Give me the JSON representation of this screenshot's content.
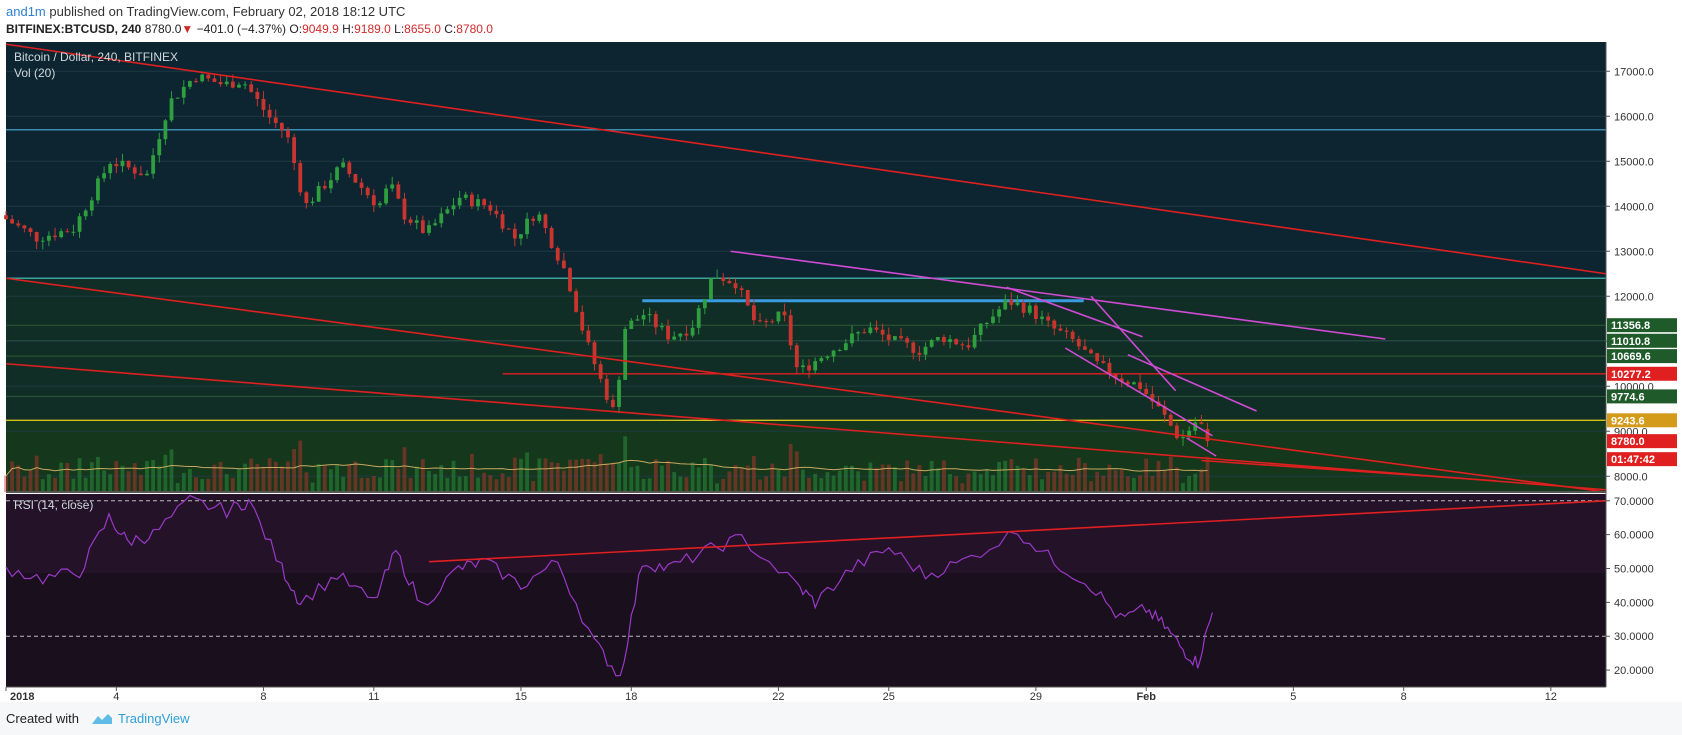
{
  "header": {
    "author": "and1m",
    "published_text": "published on TradingView.com, February 02, 2018 18:12 UTC",
    "symbol": "BITFINEX:BTCUSD, 240",
    "last_price": "8780.0",
    "down_arrow": "▼",
    "change": "−401.0 (−4.37%)",
    "o_label": "O:",
    "o_value": "9049.9",
    "h_label": "H:",
    "h_value": "9189.0",
    "l_label": "L:",
    "l_value": "8655.0",
    "c_label": "C:",
    "c_value": "8780.0"
  },
  "panes": {
    "main_legend": "Bitcoin / Dollar, 240, BITFINEX",
    "vol_legend": "Vol (20)",
    "rsi_legend": "RSI (14, close)"
  },
  "price_labels": [
    {
      "text": "11356.8",
      "value": 11356.8,
      "color": "#1f5a2a"
    },
    {
      "text": "11010.8",
      "value": 11010.8,
      "color": "#1f5a2a"
    },
    {
      "text": "10669.6",
      "value": 10669.6,
      "color": "#1f5a2a"
    },
    {
      "text": "10277.2",
      "value": 10277.2,
      "color": "#e02020"
    },
    {
      "text": "9774.6",
      "value": 9774.6,
      "color": "#1f5a2a"
    },
    {
      "text": "9243.6",
      "value": 9243.6,
      "color": "#d49a1a"
    },
    {
      "text": "8780.0",
      "value": 8780.0,
      "color": "#e02020"
    },
    {
      "text": "01:47:42",
      "value": 8380,
      "color": "#e02020"
    }
  ],
  "footer": {
    "created_with": "Created with",
    "brand": "TradingView"
  },
  "colors": {
    "up": "#2e9e3e",
    "down": "#c9352e",
    "trend_red": "#e01f1f",
    "trend_magenta": "#d24ad6",
    "blue_level": "#3a9be0",
    "yellow_level": "#d4c21a",
    "rsi_line": "#9a39c8"
  },
  "chart_data": [
    {
      "type": "candlestick",
      "title": "Bitcoin / Dollar, 240, BITFINEX",
      "y_axis": {
        "ticks": [
          8000,
          9000,
          10000,
          11000,
          12000,
          13000,
          14000,
          15000,
          16000,
          17000
        ],
        "tick_labels": [
          "8000.0",
          "9000.0",
          "10000.0",
          "11000.0",
          "12000.0",
          "13000.0",
          "14000.0",
          "15000.0",
          "16000.0",
          "17000.0"
        ],
        "range": [
          7650,
          17650
        ]
      },
      "x_axis": {
        "tick_labels": [
          "2018",
          "4",
          "8",
          "11",
          "15",
          "18",
          "22",
          "25",
          "29",
          "Feb",
          "5",
          "8",
          "12"
        ],
        "tick_days": [
          0,
          3,
          7,
          10,
          14,
          17,
          21,
          24,
          28,
          31,
          35,
          38,
          42
        ],
        "range_days": [
          0,
          43.5
        ]
      },
      "key_points": [
        {
          "day": 0,
          "price": 13800
        },
        {
          "day": 1,
          "price": 13300
        },
        {
          "day": 2,
          "price": 13500
        },
        {
          "day": 3,
          "price": 15000
        },
        {
          "day": 4,
          "price": 14700
        },
        {
          "day": 4.6,
          "price": 16300
        },
        {
          "day": 5.3,
          "price": 16900
        },
        {
          "day": 6.1,
          "price": 16700
        },
        {
          "day": 6.6,
          "price": 16800
        },
        {
          "day": 7.3,
          "price": 16000
        },
        {
          "day": 7.8,
          "price": 15600
        },
        {
          "day": 8.3,
          "price": 14000
        },
        {
          "day": 9.3,
          "price": 14900
        },
        {
          "day": 10.3,
          "price": 14000
        },
        {
          "day": 10.6,
          "price": 14500
        },
        {
          "day": 11.0,
          "price": 13800
        },
        {
          "day": 11.6,
          "price": 13400
        },
        {
          "day": 12.5,
          "price": 14200
        },
        {
          "day": 13.3,
          "price": 14000
        },
        {
          "day": 14.0,
          "price": 13300
        },
        {
          "day": 14.6,
          "price": 13900
        },
        {
          "day": 15.4,
          "price": 12500
        },
        {
          "day": 15.9,
          "price": 11100
        },
        {
          "day": 16.3,
          "price": 10200
        },
        {
          "day": 16.7,
          "price": 9400
        },
        {
          "day": 17.0,
          "price": 11300
        },
        {
          "day": 17.5,
          "price": 11600
        },
        {
          "day": 18.2,
          "price": 11100
        },
        {
          "day": 18.8,
          "price": 11300
        },
        {
          "day": 19.4,
          "price": 12500
        },
        {
          "day": 20.0,
          "price": 12300
        },
        {
          "day": 20.6,
          "price": 11300
        },
        {
          "day": 21.3,
          "price": 11600
        },
        {
          "day": 21.7,
          "price": 10300
        },
        {
          "day": 22.4,
          "price": 10700
        },
        {
          "day": 23.0,
          "price": 11000
        },
        {
          "day": 23.6,
          "price": 11300
        },
        {
          "day": 24.3,
          "price": 11000
        },
        {
          "day": 25.0,
          "price": 10800
        },
        {
          "day": 25.6,
          "price": 11100
        },
        {
          "day": 26.3,
          "price": 10900
        },
        {
          "day": 26.8,
          "price": 11400
        },
        {
          "day": 27.4,
          "price": 11900
        },
        {
          "day": 28.0,
          "price": 11700
        },
        {
          "day": 28.6,
          "price": 11300
        },
        {
          "day": 29.2,
          "price": 11000
        },
        {
          "day": 29.8,
          "price": 10500
        },
        {
          "day": 30.4,
          "price": 10200
        },
        {
          "day": 31.0,
          "price": 10000
        },
        {
          "day": 31.6,
          "price": 9400
        },
        {
          "day": 32.1,
          "price": 8800
        },
        {
          "day": 32.6,
          "price": 9300
        },
        {
          "day": 32.8,
          "price": 8780
        }
      ],
      "last_open": 9049.9,
      "last_high": 9189.0,
      "last_low": 8655.0,
      "last_close": 8780.0,
      "horizontal_levels": [
        {
          "value": 15700,
          "color": "#3a8fb0"
        },
        {
          "value": 12400,
          "color": "#3aa3a0"
        },
        {
          "value": 10277.2,
          "color": "#e01f1f",
          "from_day": 13.5
        },
        {
          "value": 9243.6,
          "color": "#d4c21a"
        },
        {
          "value": 11900,
          "color": "#3a9be0",
          "from_day": 17.3,
          "to_day": 29.3,
          "width": 3
        }
      ],
      "trend_lines_price": [
        {
          "from": [
            0,
            17600
          ],
          "to": [
            43.5,
            12500
          ],
          "color": "#e01f1f"
        },
        {
          "from": [
            0,
            12400
          ],
          "to": [
            43.5,
            7650
          ],
          "color": "#e01f1f"
        },
        {
          "from": [
            0,
            10500
          ],
          "to": [
            43.5,
            7700
          ],
          "color": "#e01f1f"
        },
        {
          "from": [
            32.5,
            8350
          ],
          "to": [
            40.5,
            7900
          ],
          "color": "#e01f1f"
        },
        {
          "from": [
            19.7,
            13000
          ],
          "to": [
            37.5,
            11050
          ],
          "color": "#d24ad6"
        },
        {
          "from": [
            27.2,
            12200
          ],
          "to": [
            30.9,
            11100
          ],
          "color": "#d24ad6"
        },
        {
          "from": [
            29.5,
            12000
          ],
          "to": [
            31.8,
            9900
          ],
          "color": "#d24ad6"
        },
        {
          "from": [
            28.8,
            10850
          ],
          "to": [
            32.8,
            8900
          ],
          "color": "#d24ad6"
        },
        {
          "from": [
            30.5,
            10700
          ],
          "to": [
            34.0,
            9450
          ],
          "color": "#d24ad6"
        },
        {
          "from": [
            32.1,
            8850
          ],
          "to": [
            32.9,
            8450
          ],
          "color": "#d24ad6"
        }
      ]
    },
    {
      "type": "bar",
      "title": "Vol (20)",
      "note": "volume histogram overlaid at bottom of price pane with 20-period moving average line"
    },
    {
      "type": "line",
      "title": "RSI (14, close)",
      "y_axis": {
        "ticks": [
          20,
          30,
          40,
          50,
          60,
          70
        ],
        "tick_labels": [
          "20.0000",
          "30.0000",
          "40.0000",
          "50.0000",
          "60.0000",
          "70.0000"
        ],
        "range": [
          15,
          72
        ]
      },
      "overbought": 70,
      "oversold": 30,
      "key_points": [
        {
          "day": 0,
          "price": 50
        },
        {
          "day": 1,
          "price": 47
        },
        {
          "day": 2,
          "price": 49
        },
        {
          "day": 2.8,
          "price": 65
        },
        {
          "day": 3.3,
          "price": 58
        },
        {
          "day": 4.0,
          "price": 60
        },
        {
          "day": 5.0,
          "price": 70
        },
        {
          "day": 6.0,
          "price": 67
        },
        {
          "day": 6.6,
          "price": 70
        },
        {
          "day": 7.5,
          "price": 50
        },
        {
          "day": 8.0,
          "price": 40
        },
        {
          "day": 9.0,
          "price": 48
        },
        {
          "day": 10.0,
          "price": 40
        },
        {
          "day": 10.6,
          "price": 55
        },
        {
          "day": 11.3,
          "price": 39
        },
        {
          "day": 12.3,
          "price": 50
        },
        {
          "day": 13.0,
          "price": 52
        },
        {
          "day": 14.0,
          "price": 45
        },
        {
          "day": 15.0,
          "price": 52
        },
        {
          "day": 16.0,
          "price": 28
        },
        {
          "day": 16.7,
          "price": 18
        },
        {
          "day": 17.3,
          "price": 52
        },
        {
          "day": 18.0,
          "price": 50
        },
        {
          "day": 19.0,
          "price": 55
        },
        {
          "day": 20.0,
          "price": 59
        },
        {
          "day": 21.5,
          "price": 45
        },
        {
          "day": 22.0,
          "price": 40
        },
        {
          "day": 23.0,
          "price": 50
        },
        {
          "day": 24.0,
          "price": 56
        },
        {
          "day": 25.0,
          "price": 48
        },
        {
          "day": 26.0,
          "price": 52
        },
        {
          "day": 27.5,
          "price": 61
        },
        {
          "day": 28.5,
          "price": 52
        },
        {
          "day": 29.5,
          "price": 45
        },
        {
          "day": 30.3,
          "price": 35
        },
        {
          "day": 31.0,
          "price": 38
        },
        {
          "day": 31.5,
          "price": 33
        },
        {
          "day": 32.0,
          "price": 26
        },
        {
          "day": 32.4,
          "price": 22
        },
        {
          "day": 32.8,
          "price": 37
        }
      ],
      "trend_line": {
        "from": [
          11.5,
          52
        ],
        "to": [
          43.5,
          70
        ],
        "color": "#e01f1f"
      }
    }
  ]
}
